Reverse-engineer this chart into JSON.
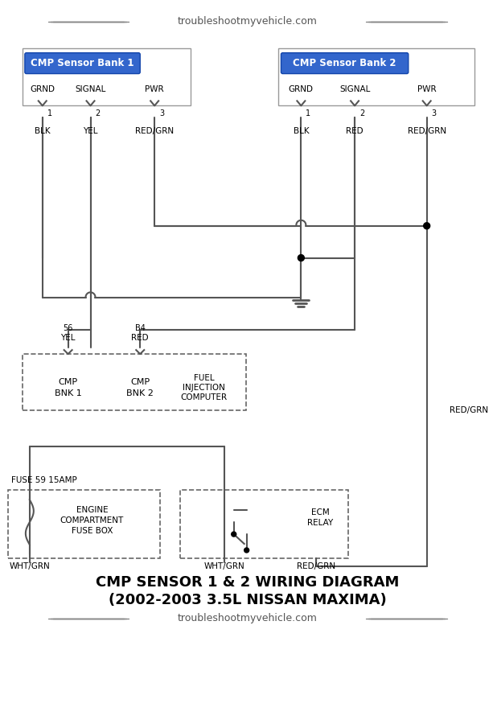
{
  "title_line1": "CMP SENSOR 1 & 2 WIRING DIAGRAM",
  "title_line2": "(2002-2003 3.5L NISSAN MAXIMA)",
  "watermark": "troubleshootmyvehicle.com",
  "bg_color": "#ffffff",
  "line_color": "#555555",
  "box_border_color": "#aaaaaa",
  "blue_label_color": "#3366cc",
  "text_color": "#000000",
  "bank1_label": "CMP Sensor Bank 1",
  "bank2_label": "CMP Sensor Bank 2",
  "bank1_pins": [
    "GRND",
    "SIGNAL",
    "PWR"
  ],
  "bank1_pin_nums": [
    "1",
    "2",
    "3"
  ],
  "bank1_wires": [
    "BLK",
    "YEL",
    "RED/GRN"
  ],
  "bank2_pins": [
    "GRND",
    "SIGNAL",
    "PWR"
  ],
  "bank2_pin_nums": [
    "1",
    "2",
    "3"
  ],
  "bank2_wires": [
    "BLK",
    "RED",
    "RED/GRN"
  ],
  "ecm_labels": [
    "CMP",
    "BNK 1"
  ],
  "ecm_labels2": [
    "CMP",
    "BNK 2"
  ],
  "ecm_label3": [
    "FUEL",
    "INJECTION",
    "COMPUTER"
  ],
  "ecm_pin1": "YEL",
  "ecm_pin1_num": "56",
  "ecm_pin2": "RED",
  "ecm_pin2_num": "B4",
  "fuse_label": "FUSE 59 15AMP",
  "fuse_box_label": [
    "ENGINE",
    "COMPARTMENT",
    "FUSE BOX"
  ],
  "ecm_relay_label": [
    "ECM",
    "RELAY"
  ],
  "wire_bottom_left": "WHT/GRN",
  "wire_bottom_mid": "WHT/GRN",
  "wire_bottom_right": "RED/GRN"
}
